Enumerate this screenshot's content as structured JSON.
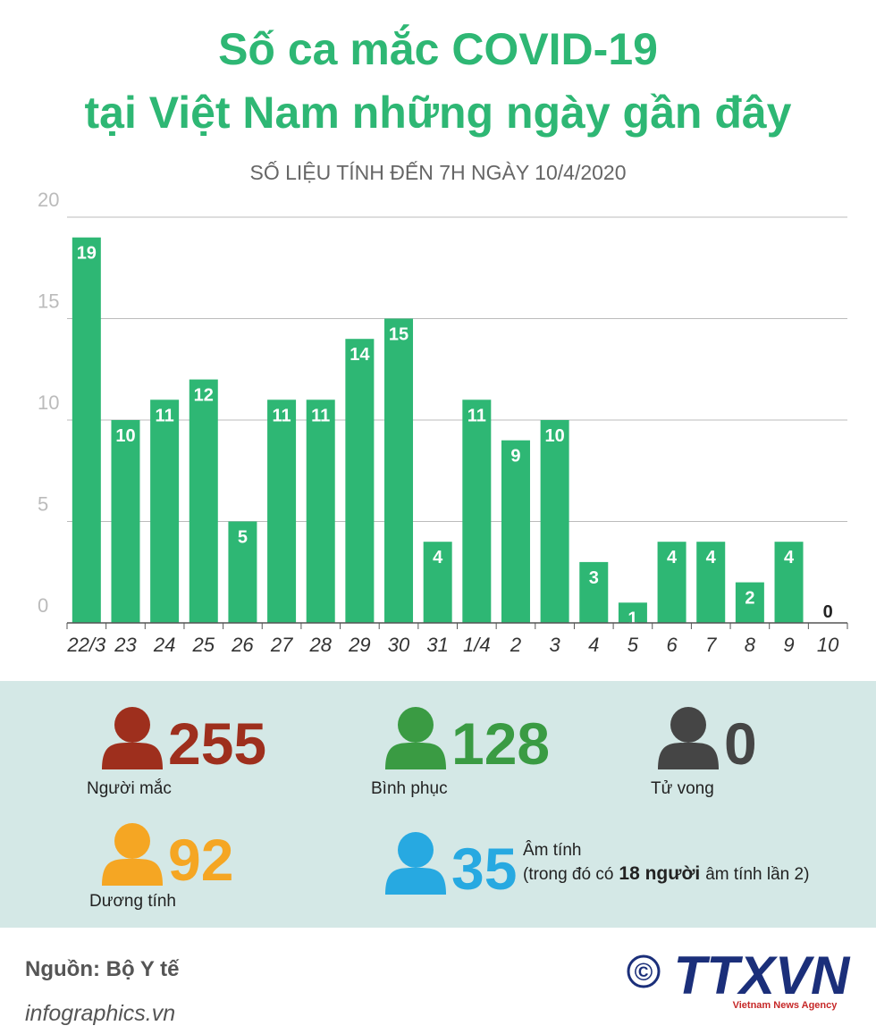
{
  "chart_data": {
    "type": "bar",
    "title": [
      "Số ca mắc COVID-19",
      "tại Việt Nam những ngày gần đây"
    ],
    "subtitle": "SỐ LIỆU TÍNH ĐẾN 7H NGÀY 10/4/2020",
    "categories": [
      "22/3",
      "23",
      "24",
      "25",
      "26",
      "27",
      "28",
      "29",
      "30",
      "31",
      "1/4",
      "2",
      "3",
      "4",
      "5",
      "6",
      "7",
      "8",
      "9",
      "10"
    ],
    "values": [
      19,
      10,
      11,
      12,
      5,
      11,
      11,
      14,
      15,
      4,
      11,
      9,
      10,
      3,
      1,
      4,
      4,
      2,
      4,
      0
    ],
    "color": "#2eb774",
    "ylim": [
      0,
      20
    ],
    "yticks": [
      0,
      5,
      10,
      15,
      20
    ],
    "grid": true
  },
  "stats": [
    {
      "value": 255,
      "label": "Người mắc",
      "color": "#9e2f1d"
    },
    {
      "value": 128,
      "label": "Bình phục",
      "color": "#3a9b43"
    },
    {
      "value": 0,
      "label": "Tử vong",
      "color": "#454545"
    },
    {
      "value": 92,
      "label": "Dương tính",
      "color": "#f5a623"
    },
    {
      "value": 35,
      "label": "Âm tính",
      "color": "#27a9e1",
      "note_before": "(trong đó có",
      "note_bold": "18 người",
      "note_after": "âm tính lần 2)"
    }
  ],
  "footer": {
    "source": "Nguồn: Bộ Y tế",
    "site": "infographics.vn",
    "copyright": "©",
    "logo": "TTXVN",
    "logo_sub": "Vietnam News Agency"
  }
}
